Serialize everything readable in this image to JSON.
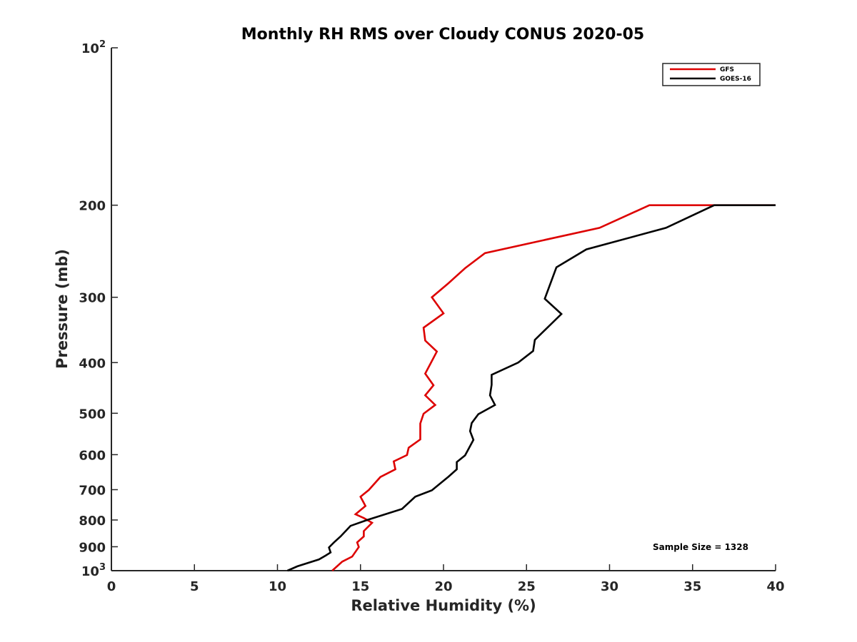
{
  "chart_data": {
    "type": "line",
    "title": "Monthly RH RMS over Cloudy CONUS  2020-05",
    "xlabel": "Relative Humidity (%)",
    "ylabel": "Pressure (mb)",
    "xlim": [
      0,
      40
    ],
    "ylim": [
      100,
      1000
    ],
    "y_scale": "log",
    "y_reversed": true,
    "grid": false,
    "legend_position": "top-right",
    "x_ticks": [
      "0",
      "5",
      "10",
      "15",
      "20",
      "25",
      "30",
      "35",
      "40"
    ],
    "y_ticks": [
      {
        "value": 100,
        "label": "10",
        "sup": "2"
      },
      {
        "value": 200,
        "label": "200"
      },
      {
        "value": 300,
        "label": "300"
      },
      {
        "value": 400,
        "label": "400"
      },
      {
        "value": 500,
        "label": "500"
      },
      {
        "value": 600,
        "label": "600"
      },
      {
        "value": 700,
        "label": "700"
      },
      {
        "value": 800,
        "label": "800"
      },
      {
        "value": 900,
        "label": "900"
      },
      {
        "value": 1000,
        "label": "10",
        "sup": "3"
      }
    ],
    "annotation": "Sample Size = 1328",
    "series": [
      {
        "name": "GFS",
        "color": "#dd0000",
        "points": [
          [
            40.0,
            200
          ],
          [
            32.4,
            200
          ],
          [
            29.4,
            221
          ],
          [
            22.5,
            247
          ],
          [
            21.3,
            264
          ],
          [
            20.3,
            282
          ],
          [
            19.3,
            300
          ],
          [
            20.0,
            322
          ],
          [
            18.8,
            343
          ],
          [
            18.9,
            363
          ],
          [
            19.6,
            381
          ],
          [
            18.9,
            420
          ],
          [
            19.4,
            442
          ],
          [
            18.9,
            462
          ],
          [
            19.5,
            482
          ],
          [
            18.8,
            501
          ],
          [
            18.6,
            523
          ],
          [
            18.6,
            561
          ],
          [
            17.9,
            582
          ],
          [
            17.8,
            601
          ],
          [
            17.0,
            618
          ],
          [
            17.1,
            640
          ],
          [
            16.2,
            662
          ],
          [
            15.5,
            701
          ],
          [
            15.0,
            722
          ],
          [
            15.3,
            752
          ],
          [
            14.7,
            780
          ],
          [
            15.2,
            793
          ],
          [
            15.7,
            810
          ],
          [
            15.2,
            840
          ],
          [
            15.2,
            860
          ],
          [
            14.8,
            883
          ],
          [
            14.9,
            901
          ],
          [
            14.5,
            940
          ],
          [
            13.9,
            961
          ],
          [
            13.3,
            1000
          ]
        ]
      },
      {
        "name": "GOES-16",
        "color": "#000000",
        "points": [
          [
            40.0,
            200
          ],
          [
            36.3,
            200
          ],
          [
            33.4,
            221
          ],
          [
            28.6,
            243
          ],
          [
            26.8,
            263
          ],
          [
            26.1,
            302
          ],
          [
            27.1,
            323
          ],
          [
            25.5,
            362
          ],
          [
            25.4,
            380
          ],
          [
            24.5,
            400
          ],
          [
            22.9,
            422
          ],
          [
            22.9,
            441
          ],
          [
            22.8,
            462
          ],
          [
            23.1,
            482
          ],
          [
            22.1,
            502
          ],
          [
            21.7,
            522
          ],
          [
            21.6,
            541
          ],
          [
            21.8,
            562
          ],
          [
            21.3,
            602
          ],
          [
            20.8,
            620
          ],
          [
            20.8,
            640
          ],
          [
            20.3,
            661
          ],
          [
            19.8,
            681
          ],
          [
            19.3,
            702
          ],
          [
            18.3,
            722
          ],
          [
            17.5,
            762
          ],
          [
            15.4,
            800
          ],
          [
            14.4,
            821
          ],
          [
            13.8,
            860
          ],
          [
            13.4,
            883
          ],
          [
            13.1,
            903
          ],
          [
            13.2,
            923
          ],
          [
            12.9,
            936
          ],
          [
            12.5,
            952
          ],
          [
            11.2,
            981
          ],
          [
            10.6,
            1000
          ]
        ]
      }
    ]
  }
}
